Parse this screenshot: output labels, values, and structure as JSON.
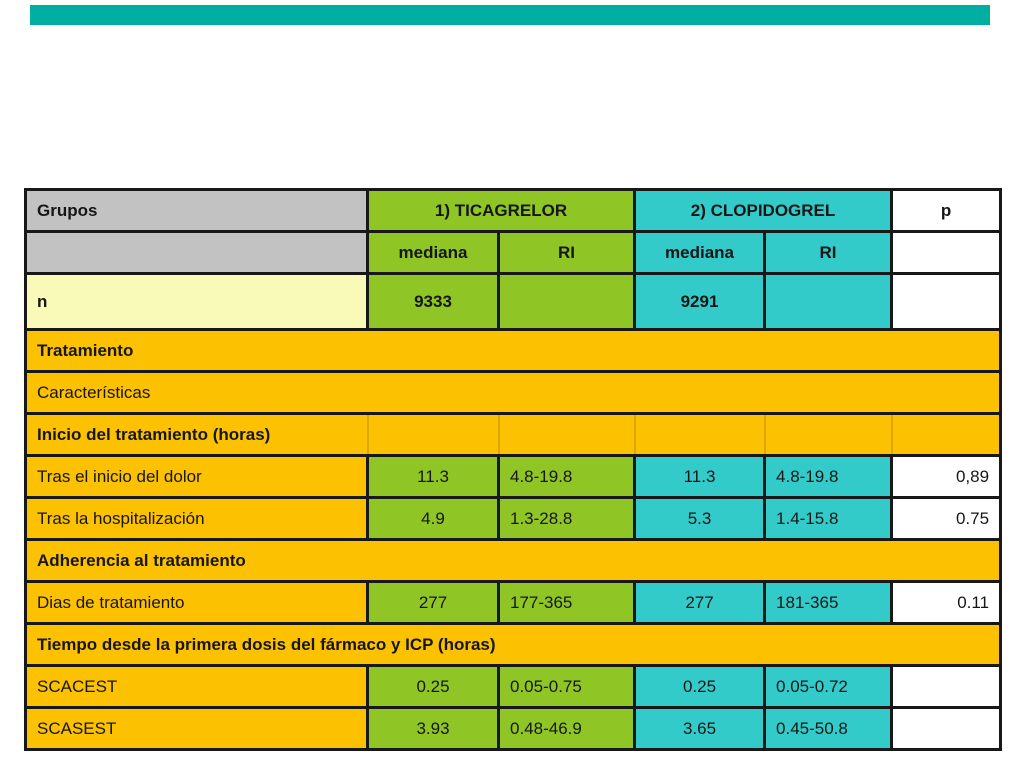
{
  "palette": {
    "topbar_accent": "#00AF9F",
    "green_group": "#8FC525",
    "teal_group": "#33CBC9",
    "gold_row": "#FCC101",
    "pale_yellow_row": "#FAFAB8",
    "gray_header": "#C2C2C2",
    "border_black": "#181818"
  },
  "table": {
    "header": {
      "grupos": "Grupos",
      "group1": "1) TICAGRELOR",
      "group2": "2) CLOPIDOGREL",
      "p_label": "p",
      "mediana1": "mediana",
      "ri1": "RI",
      "mediana2": "mediana",
      "ri2": "RI"
    },
    "n_row": {
      "label": "n",
      "g1": "9333",
      "g2": "9291"
    },
    "rows": [
      {
        "type": "section-bold",
        "label": "Tratamiento"
      },
      {
        "type": "section",
        "label": "Características"
      },
      {
        "type": "section-divided",
        "label": "Inicio del tratamiento (horas)"
      },
      {
        "type": "data",
        "label": "Tras el inicio del dolor",
        "m1": "11.3",
        "ri1": "4.8-19.8",
        "m2": "11.3",
        "ri2": "4.8-19.8",
        "p": "0,89"
      },
      {
        "type": "data",
        "label": "Tras la hospitalización",
        "m1": "4.9",
        "ri1": "1.3-28.8",
        "m2": "5.3",
        "ri2": "1.4-15.8",
        "p": "0.75"
      },
      {
        "type": "section-bold",
        "label": "Adherencia al tratamiento"
      },
      {
        "type": "data",
        "label": "Dias de tratamiento",
        "m1": "277",
        "ri1": "177-365",
        "m2": "277",
        "ri2": "181-365",
        "p": "0.11"
      },
      {
        "type": "section-bold",
        "label": "Tiempo desde la primera dosis del fármaco y ICP (horas)"
      },
      {
        "type": "data",
        "label": "SCACEST",
        "m1": "0.25",
        "ri1": "0.05-0.75",
        "m2": "0.25",
        "ri2": "0.05-0.72",
        "p": ""
      },
      {
        "type": "data",
        "label": "SCASEST",
        "m1": "3.93",
        "ri1": "0.48-46.9",
        "m2": "3.65",
        "ri2": "0.45-50.8",
        "p": ""
      }
    ]
  }
}
